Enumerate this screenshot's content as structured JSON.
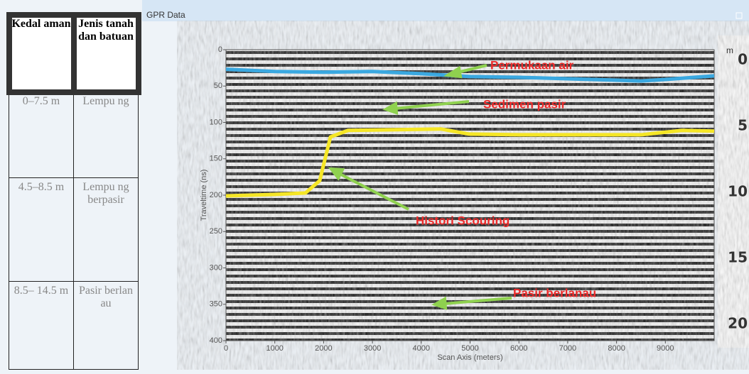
{
  "window": {
    "title": "GPR Data"
  },
  "table": {
    "header": [
      "Kedal aman",
      "Jenis tanah dan batuan"
    ],
    "rows": [
      [
        "0–7.5 m",
        "Lempu ng"
      ],
      [
        "4.5–8.5 m",
        "Lempu ng berpasir"
      ],
      [
        "8.5– 14.5 m",
        "Pasir berlan au"
      ]
    ]
  },
  "depth_scale": {
    "unit": "m",
    "labels": [
      0,
      5,
      10,
      15,
      20
    ]
  },
  "chart_data": {
    "type": "line",
    "x_label": "Scan Axis (meters)",
    "y_label": "Traveltime (ns)",
    "xlim": [
      0,
      10000
    ],
    "xticks": [
      0,
      1000,
      2000,
      3000,
      4000,
      5000,
      6000,
      7000,
      8000,
      9000
    ],
    "ylim": [
      0,
      400
    ],
    "yticks": [
      0,
      50,
      100,
      150,
      200,
      250,
      300,
      350,
      400
    ],
    "y_inverted": true,
    "series": [
      {
        "name": "Permukaan air",
        "color": "#3aa8e0",
        "x": [
          0,
          1000,
          2000,
          3000,
          4000,
          4500,
          5000,
          6000,
          7000,
          8000,
          8500,
          9000,
          10000
        ],
        "values": [
          27,
          30,
          31,
          30,
          33,
          35,
          37,
          38,
          40,
          42,
          43,
          41,
          36
        ]
      },
      {
        "name": "Histori Scouring",
        "color": "#f5e626",
        "x": [
          0,
          1000,
          1630,
          1920,
          2140,
          2500,
          3500,
          4400,
          4980,
          6000,
          7000,
          8500,
          9340,
          10000
        ],
        "values": [
          201,
          199,
          197,
          180,
          120,
          111,
          110,
          109,
          116,
          117,
          117,
          117,
          111,
          112
        ]
      }
    ],
    "annotations": [
      "Permukaan air",
      "Sedimen pasir",
      "Histori Scouring",
      "Pasir berlanau"
    ]
  }
}
